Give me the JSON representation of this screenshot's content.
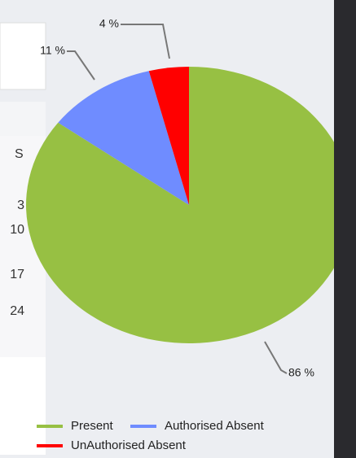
{
  "chart_data": {
    "type": "pie",
    "categories": [
      "Present",
      "Authorised Absent",
      "UnAuthorised Absent"
    ],
    "values": [
      86,
      11,
      4
    ],
    "value_labels": [
      "86 %",
      "11 %",
      "4 %"
    ],
    "colors": [
      "#97c043",
      "#6f8cff",
      "#ff0000"
    ]
  },
  "calendar": {
    "header": "S",
    "dates": [
      3,
      10,
      17,
      24
    ]
  }
}
